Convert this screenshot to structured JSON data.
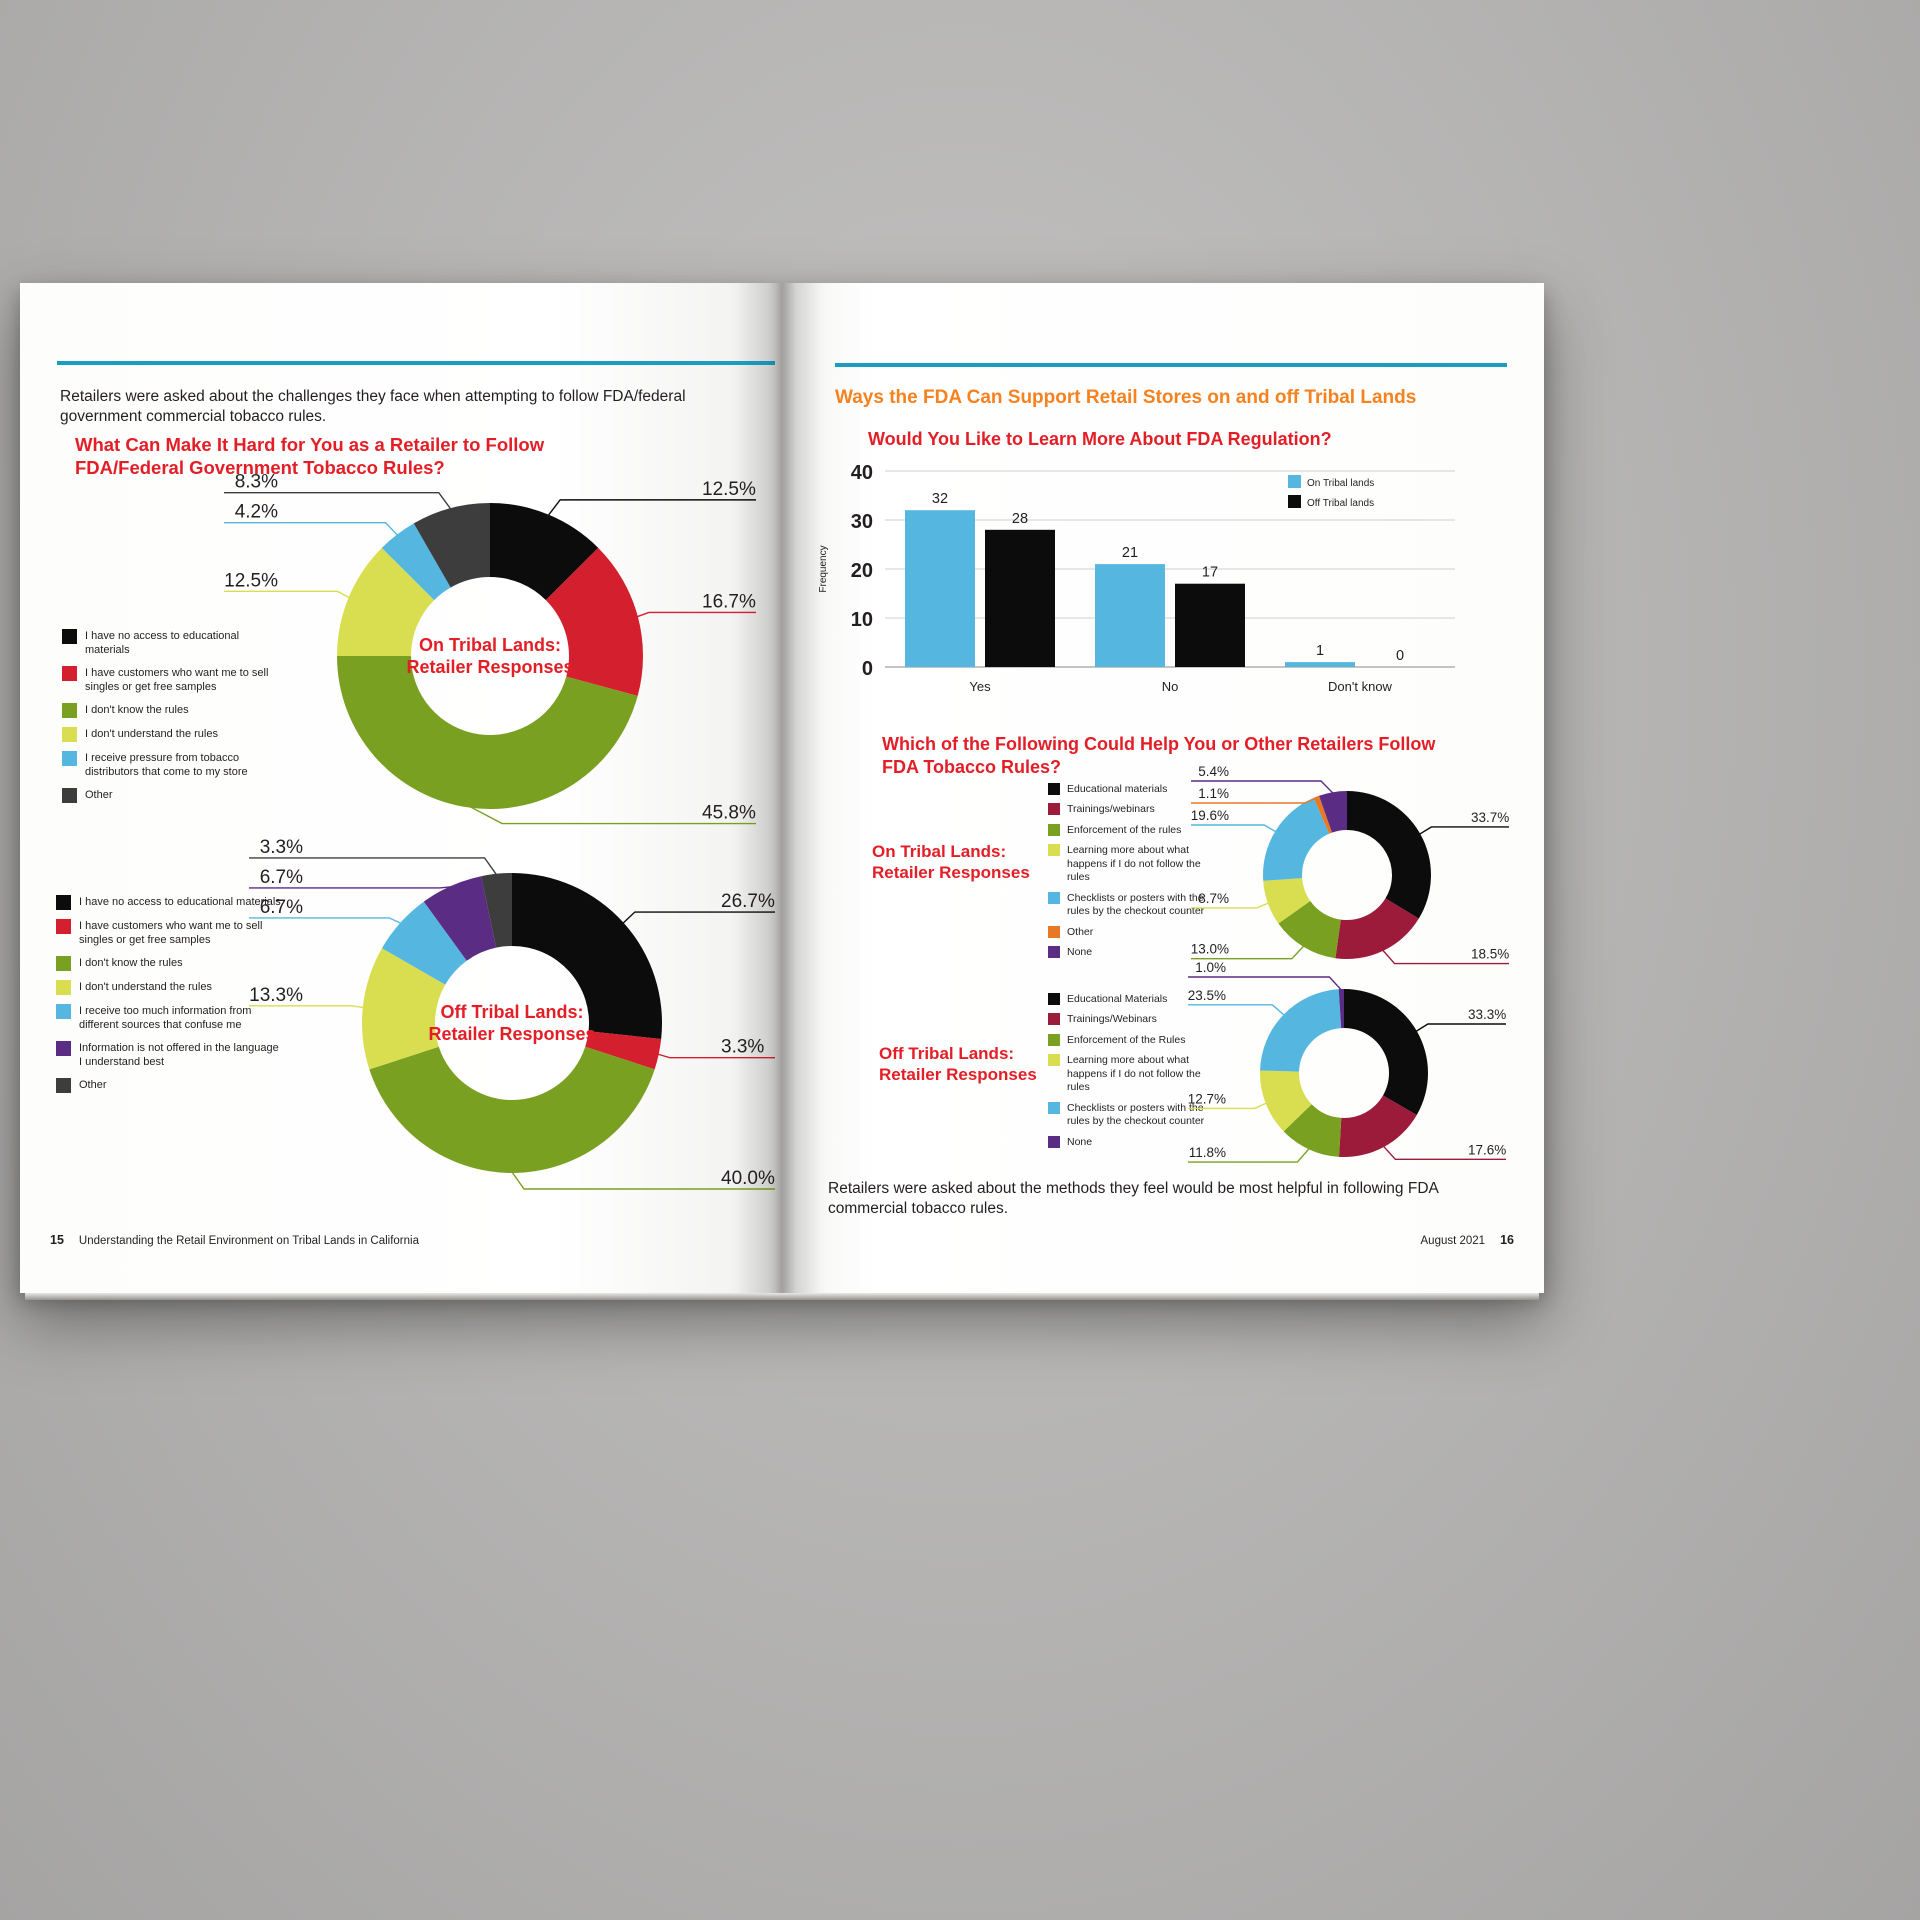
{
  "palette": {
    "background_gray": "#b3b2b1",
    "accent_teal": "#1a9ec0",
    "heading_red": "#e41e26",
    "heading_orange": "#f5821f",
    "text_dark": "#231f20"
  },
  "left_page": {
    "page_number": "15",
    "footer_title": "Understanding the Retail Environment on Tribal Lands in California",
    "intro": "Retailers were asked about the challenges they face when attempting to follow FDA/federal government commercial tobacco rules.",
    "heading": "What Can Make It Hard for You as a Retailer to Follow FDA/Federal Government Tobacco Rules?"
  },
  "right_page": {
    "page_number": "16",
    "footer_date": "August 2021",
    "heading": "Ways the FDA Can Support Retail Stores on and off Tribal Lands",
    "donut_heading": "Which of the Following Could Help You or Other Retailers Follow FDA Tobacco Rules?",
    "outro": "Retailers were asked about the methods they feel would be most helpful in following FDA commercial tobacco rules."
  },
  "chart_data": [
    {
      "id": "donut_on_tribal_left",
      "type": "pie",
      "donut": true,
      "title": "On Tribal Lands: Retailer Responses",
      "center_label_lines": [
        "On Tribal Lands:",
        "Retailer Responses"
      ],
      "labels": [
        "I have no access to educational materials",
        "I have customers who want me to sell singles or get free samples",
        "I don't know the rules",
        "I don't understand the rules",
        "I receive pressure from tobacco distributors that come to my store",
        "Other"
      ],
      "values": [
        12.5,
        16.7,
        45.8,
        12.5,
        4.2,
        8.3
      ],
      "colors": [
        "#0c0c0c",
        "#d31f2e",
        "#7aa021",
        "#d9de51",
        "#55b7e0",
        "#3d3d3d"
      ]
    },
    {
      "id": "donut_off_tribal_left",
      "type": "pie",
      "donut": true,
      "title": "Off Tribal Lands: Retailer Responses",
      "center_label_lines": [
        "Off Tribal Lands:",
        "Retailer Responses"
      ],
      "labels": [
        "I have no access to educational materials",
        "I have customers who want me to sell singles or get free samples",
        "I don't know the rules",
        "I don't understand the rules",
        "I receive too much information from different sources that confuse me",
        "Information is not offered in the language I understand best",
        "Other"
      ],
      "values": [
        26.7,
        3.3,
        40.0,
        13.3,
        6.7,
        6.7,
        3.3
      ],
      "colors": [
        "#0c0c0c",
        "#d31f2e",
        "#7aa021",
        "#d9de51",
        "#55b7e0",
        "#5b2c83",
        "#3d3d3d"
      ]
    },
    {
      "id": "bar_learn_more",
      "type": "bar",
      "title": "Would You Like to Learn More About FDA Regulation?",
      "categories": [
        "Yes",
        "No",
        "Don't know"
      ],
      "series": [
        {
          "name": "On Tribal lands",
          "color": "#55b7e0",
          "values": [
            32,
            21,
            1
          ]
        },
        {
          "name": "Off Tribal lands",
          "color": "#0c0c0c",
          "values": [
            28,
            17,
            0
          ]
        }
      ],
      "xlabel": "",
      "ylabel": "Frequency",
      "ylim": [
        0,
        40
      ],
      "yticks": [
        0,
        10,
        20,
        30,
        40
      ],
      "grid": true,
      "legend_position": "top-right"
    },
    {
      "id": "donut_on_tribal_right",
      "type": "pie",
      "donut": true,
      "title": "On Tribal Lands: Retailer Responses",
      "side_label_lines": [
        "On Tribal Lands:",
        "Retailer Responses"
      ],
      "labels": [
        "Educational materials",
        "Trainings/webinars",
        "Enforcement of the rules",
        "Learning more about what happens if I do not follow the rules",
        "Checklists or posters with the rules by the checkout counter",
        "Other",
        "None"
      ],
      "values": [
        33.7,
        18.5,
        13.0,
        8.7,
        19.6,
        1.1,
        5.4
      ],
      "colors": [
        "#0c0c0c",
        "#9c1b3b",
        "#7aa021",
        "#d9de51",
        "#55b7e0",
        "#e97826",
        "#5b2c83"
      ]
    },
    {
      "id": "donut_off_tribal_right",
      "type": "pie",
      "donut": true,
      "title": "Off Tribal Lands: Retailer Responses",
      "side_label_lines": [
        "Off Tribal Lands:",
        "Retailer Responses"
      ],
      "labels": [
        "Educational Materials",
        "Trainings/Webinars",
        "Enforcement of the Rules",
        "Learning more about what happens if I do not follow the rules",
        "Checklists or posters with the rules by the checkout counter",
        "None"
      ],
      "values": [
        33.3,
        17.6,
        11.8,
        12.7,
        23.5,
        1.0
      ],
      "colors": [
        "#0c0c0c",
        "#9c1b3b",
        "#7aa021",
        "#d9de51",
        "#55b7e0",
        "#5b2c83"
      ]
    }
  ]
}
